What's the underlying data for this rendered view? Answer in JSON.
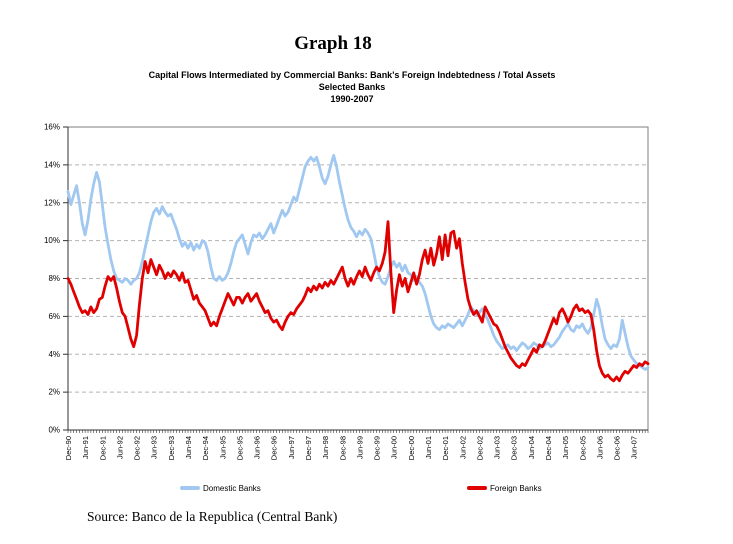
{
  "header": {
    "title": "Graph 18",
    "subtitle_lines": [
      "Capital Flows Intermediated by Commercial Banks: Bank's Foreign Indebtedness / Total Assets",
      "Selected Banks",
      "1990-2007"
    ]
  },
  "legend": [
    {
      "label": "Domestic Banks",
      "color": "#A0C8F0"
    },
    {
      "label": "Foreign Banks",
      "color": "#E00000"
    }
  ],
  "footer": {
    "source": "Source: Banco de la Republica (Central Bank)"
  },
  "chart_data": {
    "type": "line",
    "title": "Graph 18",
    "subtitle": "Capital Flows Intermediated by Commercial Banks: Bank's Foreign Indebtedness / Total Assets — Selected Banks — 1990-2007",
    "xlabel": "",
    "ylabel": "",
    "ylim": [
      0,
      16
    ],
    "ytick_step": 2,
    "ytick_suffix": "%",
    "grid": "dashed-horizontal",
    "legend_position": "bottom",
    "x_unit": "monthly (Dec-1990 to Nov-2007), tick labels every 6 months",
    "x_tick_labels": [
      "Dec-90",
      "Jun-91",
      "Dec-91",
      "Jun-92",
      "Dec-92",
      "Jun-93",
      "Dec-93",
      "Jun-94",
      "Dec-94",
      "Jun-95",
      "Dec-95",
      "Jun-96",
      "Dec-96",
      "Jun-97",
      "Dec-97",
      "Jun-98",
      "Dec-98",
      "Jun-99",
      "Dec-99",
      "Jun-00",
      "Dec-00",
      "Jun-01",
      "Dec-01",
      "Jun-02",
      "Dec-02",
      "Jun-03",
      "Dec-03",
      "Jun-04",
      "Dec-04",
      "Jun-05",
      "Dec-05",
      "Jun-06",
      "Dec-06",
      "Jun-07"
    ],
    "x_label_months_per_tick": 6,
    "series": [
      {
        "name": "Domestic Banks",
        "color": "#A0C8F0",
        "width": 2.8,
        "values": [
          12.6,
          11.9,
          12.4,
          12.9,
          12.0,
          10.9,
          10.3,
          11.1,
          12.2,
          13.0,
          13.6,
          13.1,
          11.9,
          10.7,
          9.8,
          9.0,
          8.4,
          8.0,
          7.9,
          7.8,
          8.0,
          7.9,
          7.7,
          7.9,
          8.0,
          8.3,
          8.9,
          9.6,
          10.3,
          11.0,
          11.5,
          11.7,
          11.4,
          11.8,
          11.5,
          11.3,
          11.4,
          11.0,
          10.6,
          10.1,
          9.7,
          9.9,
          9.6,
          9.9,
          9.5,
          9.8,
          9.6,
          10.0,
          9.9,
          9.4,
          8.6,
          8.0,
          7.9,
          8.1,
          7.9,
          8.0,
          8.3,
          8.8,
          9.4,
          9.9,
          10.1,
          10.3,
          9.8,
          9.3,
          9.9,
          10.3,
          10.2,
          10.4,
          10.1,
          10.3,
          10.6,
          10.9,
          10.4,
          10.8,
          11.2,
          11.6,
          11.3,
          11.5,
          11.9,
          12.3,
          12.1,
          12.7,
          13.3,
          13.9,
          14.2,
          14.4,
          14.2,
          14.4,
          13.9,
          13.3,
          13.0,
          13.4,
          14.0,
          14.5,
          13.9,
          13.1,
          12.4,
          11.7,
          11.1,
          10.7,
          10.5,
          10.2,
          10.5,
          10.3,
          10.6,
          10.4,
          10.1,
          9.4,
          8.6,
          8.1,
          7.8,
          7.7,
          8.1,
          8.6,
          8.9,
          8.6,
          8.8,
          8.4,
          8.7,
          8.3,
          8.2,
          7.9,
          8.1,
          7.8,
          7.6,
          7.2,
          6.6,
          6.0,
          5.6,
          5.4,
          5.3,
          5.5,
          5.4,
          5.6,
          5.5,
          5.4,
          5.6,
          5.8,
          5.5,
          5.8,
          6.1,
          6.5,
          6.3,
          6.1,
          6.2,
          6.4,
          6.1,
          5.8,
          5.4,
          5.0,
          4.7,
          4.5,
          4.3,
          4.4,
          4.5,
          4.3,
          4.4,
          4.2,
          4.4,
          4.6,
          4.5,
          4.3,
          4.4,
          4.6,
          4.5,
          4.3,
          4.4,
          4.5,
          4.6,
          4.4,
          4.5,
          4.7,
          4.9,
          5.2,
          5.4,
          5.6,
          5.3,
          5.2,
          5.5,
          5.4,
          5.6,
          5.3,
          5.1,
          5.4,
          6.1,
          6.9,
          6.4,
          5.5,
          4.8,
          4.5,
          4.3,
          4.5,
          4.4,
          4.8,
          5.8,
          5.1,
          4.4,
          3.9,
          3.7,
          3.5,
          3.4,
          3.3,
          3.2,
          3.3
        ]
      },
      {
        "name": "Foreign Banks",
        "color": "#E00000",
        "width": 2.8,
        "values": [
          8.0,
          7.7,
          7.3,
          6.9,
          6.5,
          6.2,
          6.3,
          6.1,
          6.5,
          6.2,
          6.4,
          6.9,
          7.0,
          7.6,
          8.1,
          7.9,
          8.1,
          7.5,
          6.8,
          6.2,
          6.0,
          5.4,
          4.8,
          4.4,
          5.0,
          6.6,
          8.0,
          8.9,
          8.3,
          9.0,
          8.6,
          8.2,
          8.7,
          8.4,
          8.0,
          8.3,
          8.1,
          8.4,
          8.2,
          7.9,
          8.3,
          7.8,
          7.9,
          7.4,
          6.9,
          7.1,
          6.7,
          6.5,
          6.3,
          5.9,
          5.5,
          5.7,
          5.5,
          6.0,
          6.4,
          6.8,
          7.2,
          6.9,
          6.6,
          7.0,
          7.0,
          6.7,
          7.0,
          7.2,
          6.8,
          7.0,
          7.2,
          6.8,
          6.5,
          6.2,
          6.3,
          5.9,
          5.7,
          5.8,
          5.5,
          5.3,
          5.7,
          6.0,
          6.2,
          6.1,
          6.4,
          6.6,
          6.8,
          7.1,
          7.5,
          7.3,
          7.6,
          7.4,
          7.7,
          7.5,
          7.8,
          7.6,
          7.9,
          7.7,
          8.0,
          8.3,
          8.6,
          8.0,
          7.6,
          8.0,
          7.7,
          8.1,
          8.4,
          8.1,
          8.6,
          8.2,
          7.9,
          8.3,
          8.6,
          8.4,
          8.8,
          9.4,
          11.0,
          8.3,
          6.2,
          7.4,
          8.2,
          7.6,
          8.0,
          7.3,
          7.8,
          8.3,
          7.7,
          8.2,
          9.0,
          9.5,
          8.8,
          9.6,
          8.7,
          9.3,
          10.2,
          9.0,
          10.3,
          9.2,
          10.4,
          10.5,
          9.6,
          10.1,
          8.8,
          7.8,
          6.9,
          6.4,
          6.1,
          6.3,
          6.0,
          5.7,
          6.5,
          6.2,
          5.9,
          5.6,
          5.5,
          5.2,
          4.8,
          4.4,
          4.1,
          3.8,
          3.6,
          3.4,
          3.3,
          3.5,
          3.4,
          3.7,
          4.0,
          4.3,
          4.1,
          4.5,
          4.4,
          4.7,
          5.1,
          5.5,
          5.9,
          5.6,
          6.2,
          6.4,
          6.1,
          5.7,
          6.0,
          6.4,
          6.6,
          6.3,
          6.4,
          6.2,
          6.3,
          6.1,
          5.3,
          4.2,
          3.4,
          3.0,
          2.8,
          2.9,
          2.7,
          2.6,
          2.8,
          2.6,
          2.9,
          3.1,
          3.0,
          3.2,
          3.4,
          3.3,
          3.5,
          3.4,
          3.6,
          3.5
        ]
      }
    ]
  }
}
